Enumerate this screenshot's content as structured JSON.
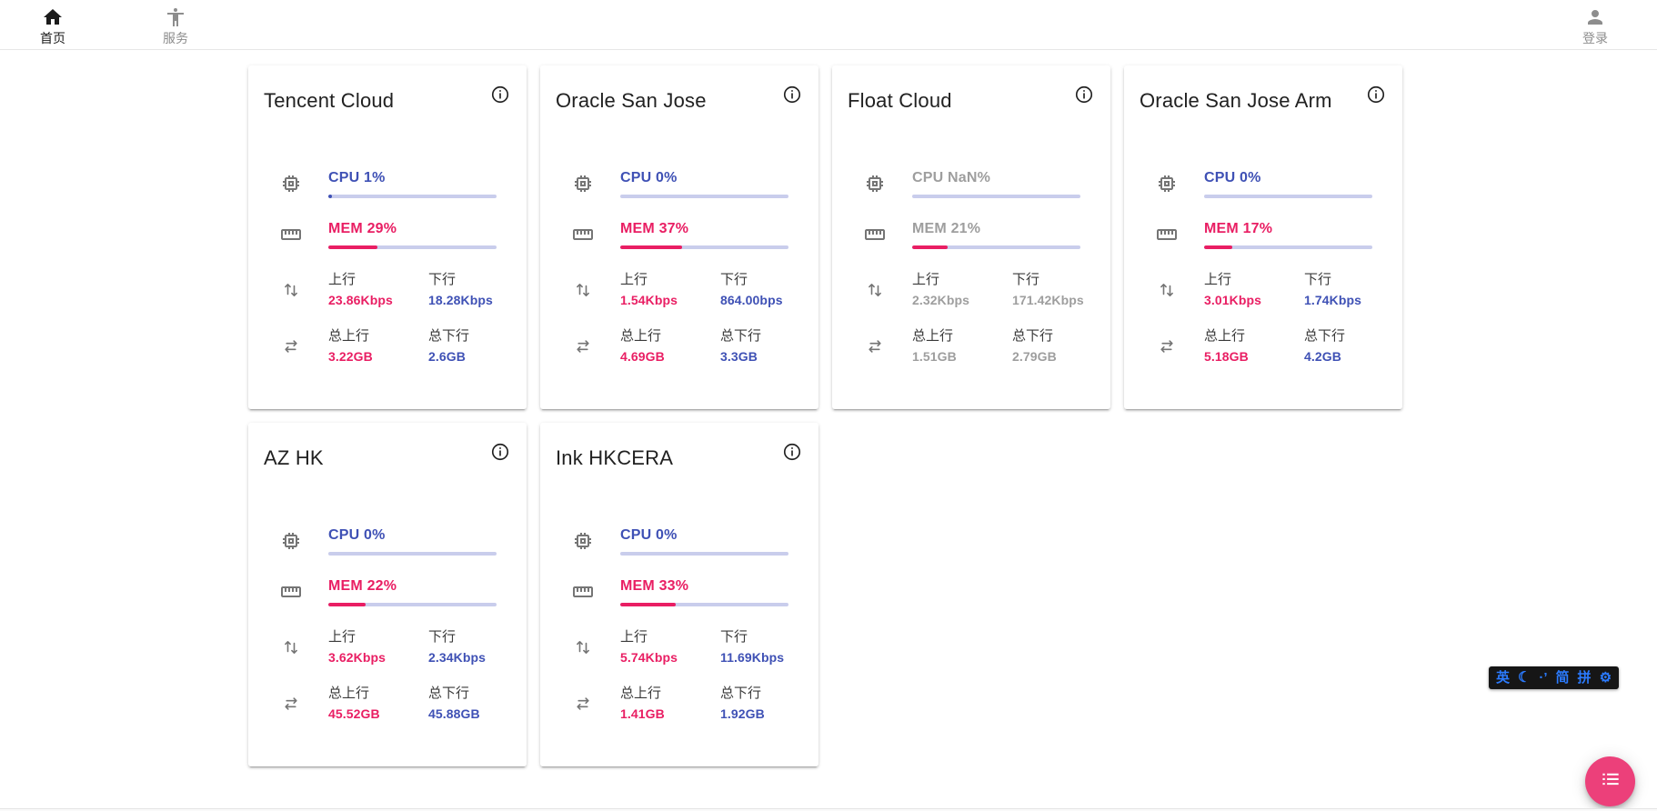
{
  "nav": {
    "home": {
      "label": "首页"
    },
    "services": {
      "label": "服务"
    },
    "login": {
      "label": "登录"
    }
  },
  "labels": {
    "up": "上行",
    "down": "下行",
    "total_up": "总上行",
    "total_down": "总下行"
  },
  "servers": [
    {
      "name": "Tencent Cloud",
      "cpu": "CPU 1%",
      "cpu_pct": 1,
      "mem": "MEM 29%",
      "mem_pct": 29,
      "up": "23.86Kbps",
      "down": "18.28Kbps",
      "total_up": "3.22GB",
      "total_down": "2.6GB",
      "offline": false
    },
    {
      "name": "Oracle San Jose",
      "cpu": "CPU 0%",
      "cpu_pct": 0,
      "mem": "MEM 37%",
      "mem_pct": 37,
      "up": "1.54Kbps",
      "down": "864.00bps",
      "total_up": "4.69GB",
      "total_down": "3.3GB",
      "offline": false
    },
    {
      "name": "Float Cloud",
      "cpu": "CPU NaN%",
      "cpu_pct": 0,
      "mem": "MEM 21%",
      "mem_pct": 21,
      "up": "2.32Kbps",
      "down": "171.42Kbps",
      "total_up": "1.51GB",
      "total_down": "2.79GB",
      "offline": true
    },
    {
      "name": "Oracle San Jose Arm",
      "cpu": "CPU 0%",
      "cpu_pct": 0,
      "mem": "MEM 17%",
      "mem_pct": 17,
      "up": "3.01Kbps",
      "down": "1.74Kbps",
      "total_up": "5.18GB",
      "total_down": "4.2GB",
      "offline": false
    },
    {
      "name": "AZ HK",
      "cpu": "CPU 0%",
      "cpu_pct": 0,
      "mem": "MEM 22%",
      "mem_pct": 22,
      "up": "3.62Kbps",
      "down": "2.34Kbps",
      "total_up": "45.52GB",
      "total_down": "45.88GB",
      "offline": false
    },
    {
      "name": "Ink HKCERA",
      "cpu": "CPU 0%",
      "cpu_pct": 0,
      "mem": "MEM 33%",
      "mem_pct": 33,
      "up": "5.74Kbps",
      "down": "11.69Kbps",
      "total_up": "1.41GB",
      "total_down": "1.92GB",
      "offline": false
    }
  ],
  "ime": {
    "english": "英",
    "moon": "☾",
    "punct": "·’",
    "simplified": "简",
    "pinyin": "拼",
    "settings": "⚙"
  },
  "colors": {
    "cpu_blue": "#3f51b5",
    "mem_pink": "#e91e63",
    "bar_track": "#c9cdec",
    "offline_gray": "#9e9e9e",
    "fab_pink": "#ec407a",
    "ime_blue": "#2b7bff"
  }
}
